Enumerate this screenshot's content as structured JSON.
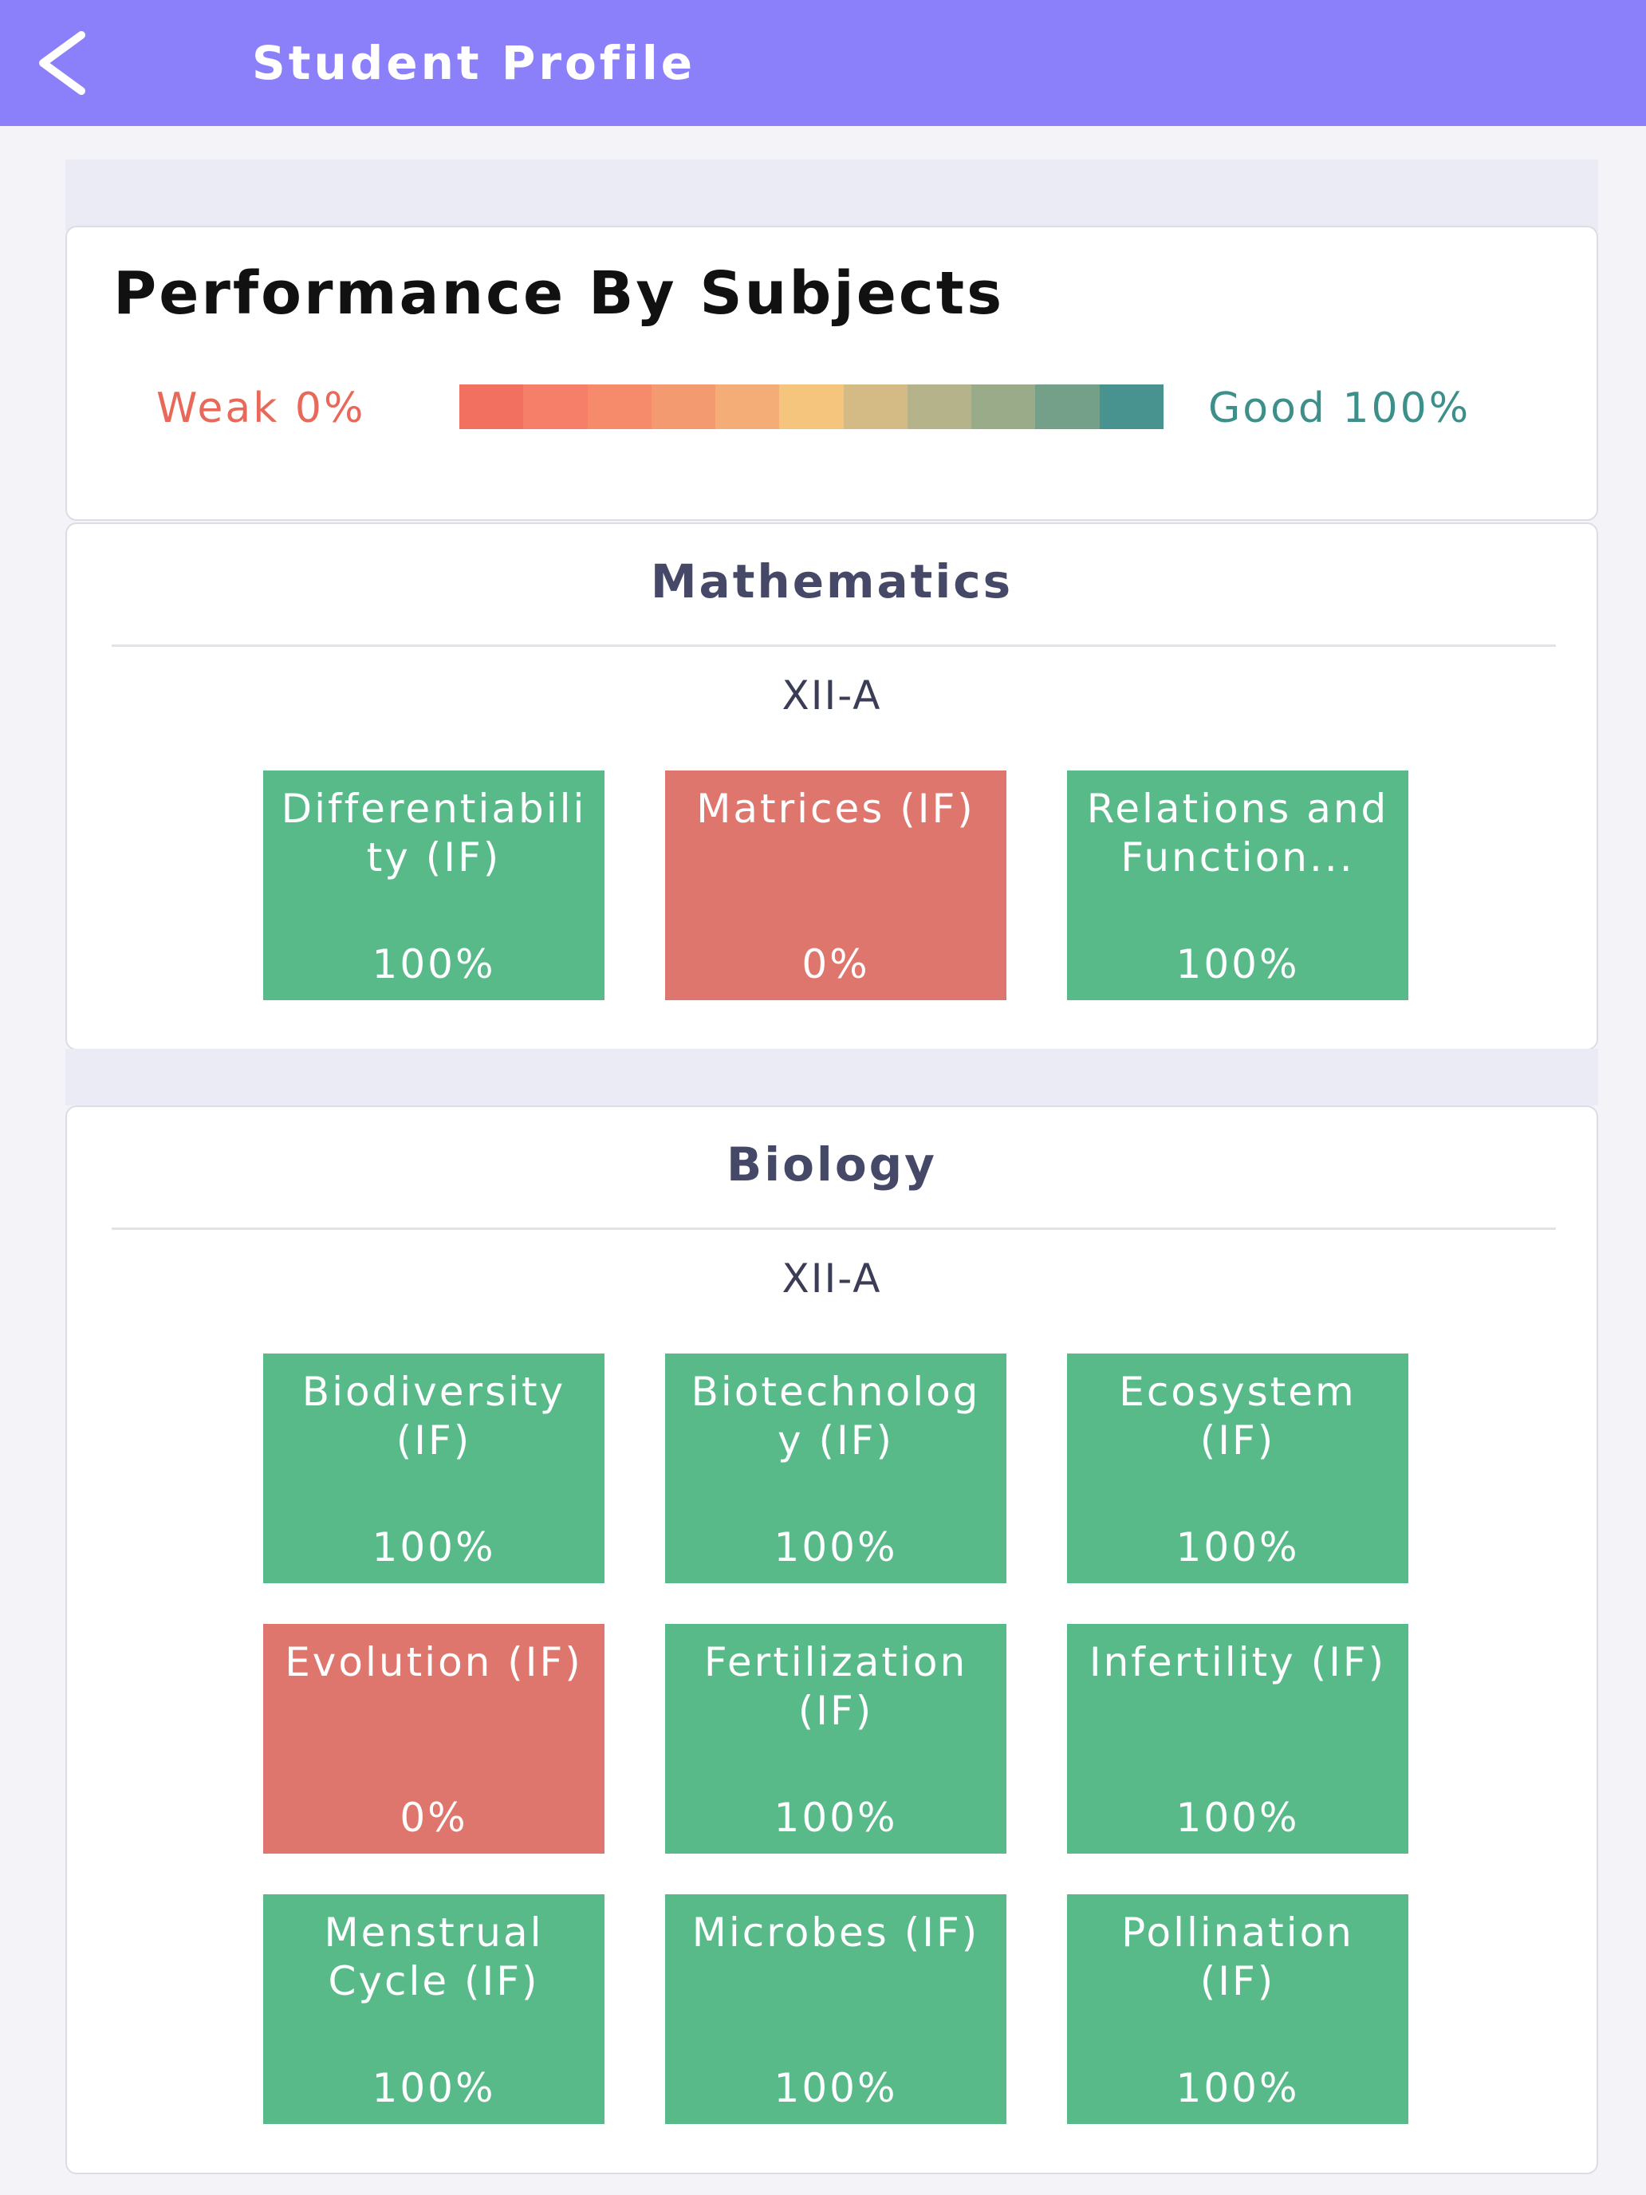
{
  "header": {
    "title": "Student Profile"
  },
  "legend": {
    "title": "Performance By Subjects",
    "low_label": "Weak 0%",
    "high_label": "Good 100%",
    "scale_colors": [
      "#f2705f",
      "#f57f68",
      "#f68b6c",
      "#f39a71",
      "#f4ad76",
      "#f6c57d",
      "#d4bb86",
      "#b5b38a",
      "#9aab8a",
      "#74a08a",
      "#48938f"
    ]
  },
  "subjects": [
    {
      "name": "Mathematics",
      "class": "XII-A",
      "topics": [
        {
          "name": "Differentiability (IF)",
          "score": "100%",
          "color": "#58b989"
        },
        {
          "name": "Matrices (IF)",
          "score": "0%",
          "color": "#df766d"
        },
        {
          "name": "Relations and Function...",
          "score": "100%",
          "color": "#58b989"
        }
      ]
    },
    {
      "name": "Biology",
      "class": "XII-A",
      "topics": [
        {
          "name": "Biodiversity (IF)",
          "score": "100%",
          "color": "#58b989"
        },
        {
          "name": "Biotechnology (IF)",
          "score": "100%",
          "color": "#58b989"
        },
        {
          "name": "Ecosystem (IF)",
          "score": "100%",
          "color": "#58b989"
        },
        {
          "name": "Evolution (IF)",
          "score": "0%",
          "color": "#df766d"
        },
        {
          "name": "Fertilization (IF)",
          "score": "100%",
          "color": "#58b989"
        },
        {
          "name": "Infertility (IF)",
          "score": "100%",
          "color": "#58b989"
        },
        {
          "name": "Menstrual Cycle (IF)",
          "score": "100%",
          "color": "#58b989"
        },
        {
          "name": "Microbes (IF)",
          "score": "100%",
          "color": "#58b989"
        },
        {
          "name": "Pollination (IF)",
          "score": "100%",
          "color": "#58b989"
        }
      ]
    }
  ]
}
